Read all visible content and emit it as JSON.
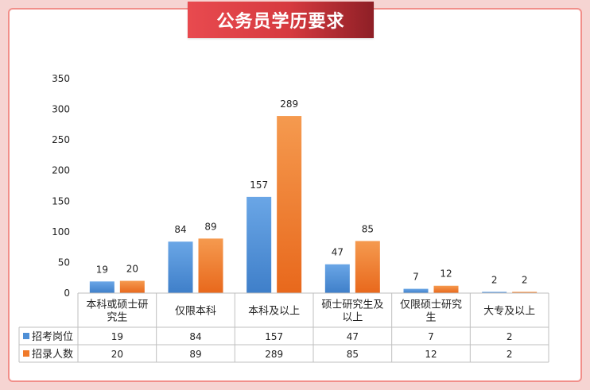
{
  "title": "公务员学历要求",
  "chart_data": {
    "type": "bar",
    "categories": [
      [
        "本科或硕士研",
        "究生"
      ],
      [
        "仅限本科"
      ],
      [
        "本科及以上"
      ],
      [
        "硕士研究生及",
        "以上"
      ],
      [
        "仅限硕士研究",
        "生"
      ],
      [
        "大专及以上"
      ]
    ],
    "series": [
      {
        "name": "招考岗位",
        "values": [
          19,
          84,
          157,
          47,
          7,
          2
        ],
        "color": "#4e8fd6"
      },
      {
        "name": "招录人数",
        "values": [
          20,
          89,
          289,
          85,
          12,
          2
        ],
        "color": "#f07a2a"
      }
    ],
    "y_ticks": [
      "0",
      "50",
      "100",
      "150",
      "200",
      "250",
      "300",
      "350"
    ],
    "ylim": [
      0,
      350
    ],
    "legend": "data-table-left",
    "grid": false
  }
}
